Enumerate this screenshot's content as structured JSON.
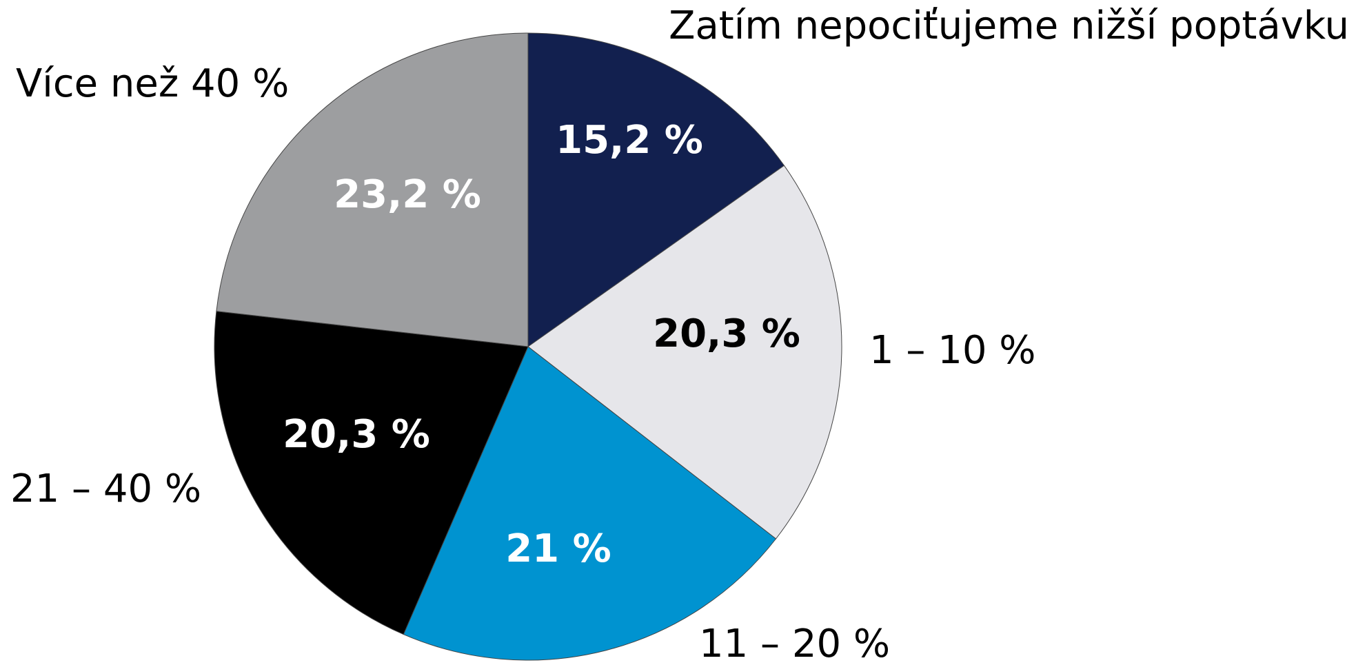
{
  "chart_data": {
    "type": "pie",
    "categories": [
      "Zatím nepociťujeme nižší poptávku",
      "1 – 10 %",
      "11 – 20 %",
      "21 – 40 %",
      "Více než 40 %"
    ],
    "values": [
      15.2,
      20.3,
      21,
      20.3,
      23.2
    ],
    "value_labels": [
      "15,2 %",
      "20,3 %",
      "21 %",
      "20,3 %",
      "23,2 %"
    ],
    "colors": [
      "#12204f",
      "#e6e6ea",
      "#0093d0",
      "#000000",
      "#9d9ea0"
    ],
    "label_colors": [
      "#ffffff",
      "#000000",
      "#ffffff",
      "#ffffff",
      "#ffffff"
    ]
  }
}
